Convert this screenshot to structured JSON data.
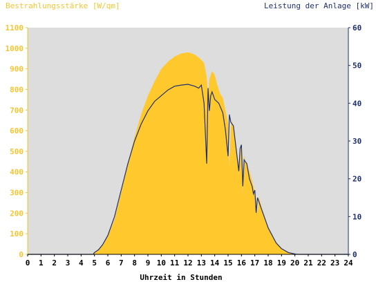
{
  "chart_data": {
    "type": "area",
    "title_left": "Bestrahlungsstärke [W/qm]",
    "title_right": "Leistung der Anlage [kW]",
    "xlabel": "Uhrzeit in Stunden",
    "x_ticks": [
      "0",
      "1",
      "2",
      "3",
      "4",
      "5",
      "6",
      "7",
      "8",
      "9",
      "10",
      "11",
      "12",
      "13",
      "14",
      "15",
      "16",
      "17",
      "18",
      "19",
      "20",
      "21",
      "22",
      "23",
      "24"
    ],
    "xlim": [
      0,
      24
    ],
    "y_left": {
      "lim": [
        0,
        1100
      ],
      "ticks": [
        "0",
        "100",
        "200",
        "300",
        "400",
        "500",
        "600",
        "700",
        "800",
        "900",
        "1000",
        "1100"
      ]
    },
    "y_right": {
      "lim": [
        0,
        60
      ],
      "ticks": [
        "0",
        "10",
        "20",
        "30",
        "40",
        "50",
        "60"
      ]
    },
    "colors": {
      "irradiance": "#ffc92e",
      "power": "#1f2f6e",
      "plot_bg": "#dddddd",
      "left_axis": "#f6c531",
      "right_axis": "#1f2f6e"
    },
    "series": [
      {
        "axis": "left",
        "kind": "area",
        "x": [
          0,
          4.9,
          5.0,
          5.3,
          5.6,
          6.0,
          6.5,
          7.0,
          7.5,
          8.0,
          8.5,
          9.0,
          9.5,
          10.0,
          10.5,
          11.0,
          11.5,
          12.0,
          12.3,
          12.6,
          12.9,
          13.2,
          13.4,
          13.5,
          13.6,
          13.8,
          14.0,
          14.2,
          14.4,
          14.6,
          14.8,
          15.0,
          15.1,
          15.2,
          15.3,
          15.5,
          15.7,
          15.8,
          15.9,
          16.0,
          16.1,
          16.2,
          16.3,
          16.5,
          16.7,
          16.9,
          17.0,
          17.1,
          17.2,
          17.3,
          17.5,
          17.7,
          18.0,
          18.3,
          18.6,
          19.0,
          19.5,
          20.0,
          20.2,
          20.4,
          24
        ],
        "y": [
          0,
          0,
          10,
          25,
          50,
          90,
          170,
          300,
          440,
          570,
          680,
          770,
          840,
          900,
          935,
          960,
          975,
          980,
          975,
          965,
          950,
          930,
          860,
          760,
          850,
          890,
          870,
          820,
          780,
          760,
          700,
          640,
          420,
          620,
          650,
          580,
          480,
          390,
          510,
          540,
          300,
          480,
          450,
          420,
          380,
          330,
          300,
          260,
          200,
          280,
          230,
          190,
          130,
          90,
          60,
          30,
          10,
          2,
          0,
          0,
          0
        ]
      },
      {
        "name": "",
        "axis": "right",
        "kind": "line",
        "x": [
          0,
          4.9,
          5.0,
          5.3,
          5.6,
          6.0,
          6.5,
          7.0,
          7.5,
          8.0,
          8.5,
          9.0,
          9.5,
          10.0,
          10.5,
          11.0,
          11.5,
          12.0,
          12.5,
          12.8,
          13.0,
          13.2,
          13.4,
          13.5,
          13.6,
          13.7,
          13.8,
          14.0,
          14.3,
          14.6,
          14.8,
          15.0,
          15.1,
          15.2,
          15.4,
          15.6,
          15.8,
          15.9,
          16.0,
          16.1,
          16.2,
          16.4,
          16.6,
          16.8,
          16.9,
          17.0,
          17.1,
          17.2,
          17.3,
          17.5,
          17.7,
          18.0,
          18.3,
          18.6,
          19.0,
          19.5,
          20.0,
          20.2,
          24
        ],
        "y": [
          0,
          0,
          0.5,
          1.2,
          2.5,
          5,
          10,
          17,
          24,
          30,
          34.5,
          38,
          40.5,
          42,
          43.5,
          44.5,
          44.8,
          45,
          44.5,
          44,
          44.8,
          40,
          24,
          44,
          38,
          42,
          43,
          41,
          40,
          37.5,
          33,
          26,
          37,
          35,
          34,
          28,
          22,
          28,
          29,
          18,
          25,
          24,
          20,
          18,
          16,
          17,
          11,
          15,
          14,
          12,
          10,
          7,
          5,
          3,
          1.5,
          0.5,
          0.1,
          0,
          0
        ]
      }
    ]
  }
}
